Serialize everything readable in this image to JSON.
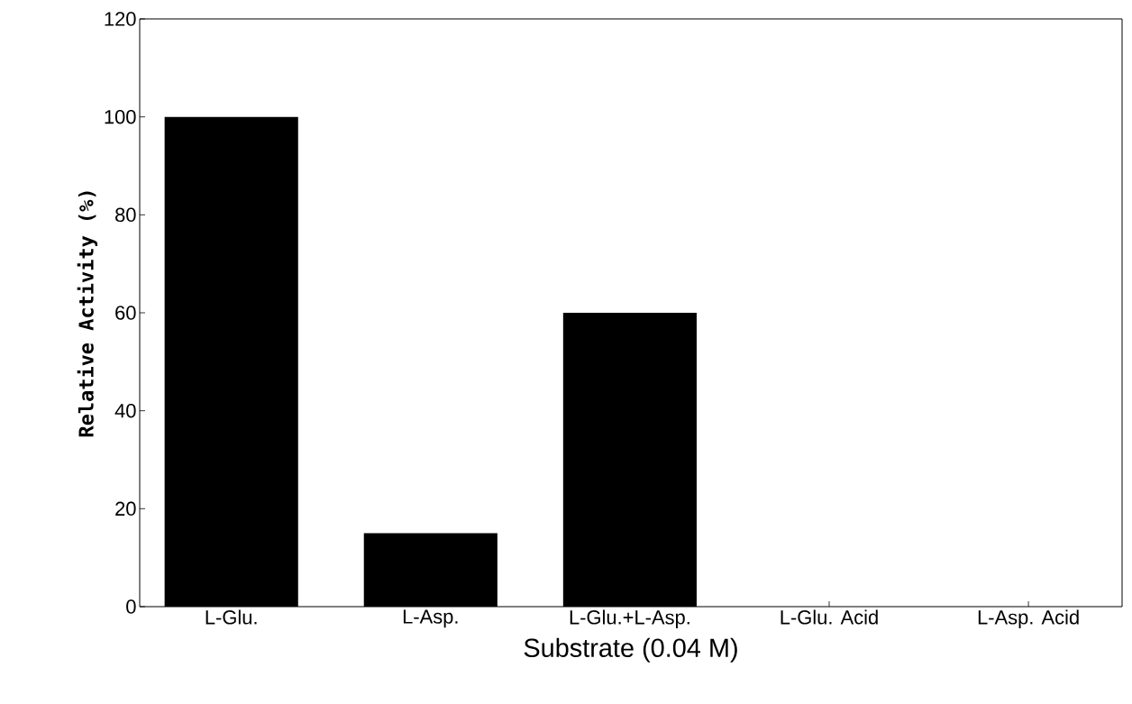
{
  "chart_data": {
    "type": "bar",
    "xlabel": "Substrate (0.04 M)",
    "ylabel": "Relative Activity (%)",
    "categories": [
      "L-Glu.",
      "L-Asp.",
      "L-Glu.+L-Asp.",
      "L-Glu. Acid",
      "L-Asp. Acid"
    ],
    "values": [
      100,
      15,
      60,
      0,
      0
    ],
    "color": "#000000",
    "ylim": [
      0,
      120
    ],
    "yticks": [
      0,
      20,
      40,
      60,
      80,
      100,
      120
    ]
  }
}
